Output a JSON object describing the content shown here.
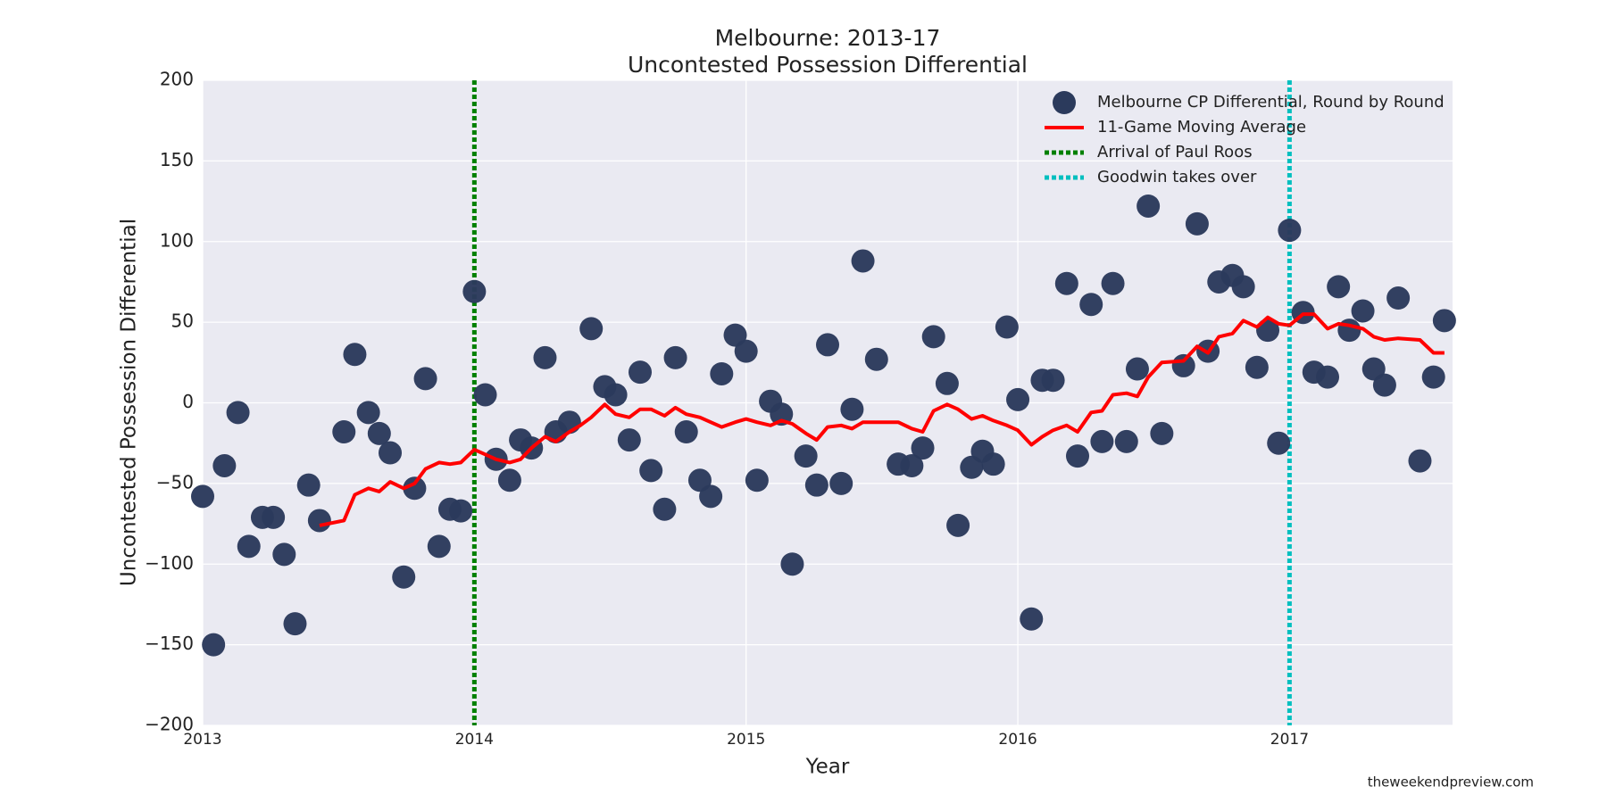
{
  "chart_data": {
    "type": "scatter",
    "title": "Melbourne: 2013-17",
    "subtitle": "Uncontested Possession Differential",
    "xlabel": "Year",
    "ylabel": "Uncontested Possession Differential",
    "annotation": "theweekendpreview.com",
    "xlim": [
      2013,
      2017.6
    ],
    "xticks": [
      2013,
      2014,
      2015,
      2016,
      2017
    ],
    "ylim": [
      -200,
      200
    ],
    "yticks": [
      {
        "value": -200,
        "label": "−200"
      },
      {
        "value": -150,
        "label": "−150"
      },
      {
        "value": -100,
        "label": "−100"
      },
      {
        "value": -50,
        "label": "−50"
      },
      0,
      50,
      100,
      150,
      200
    ],
    "grid": true,
    "legend": "upper right",
    "series": [
      {
        "name": "Melbourne CP Differential, Round by Round",
        "type": "scatter",
        "color": "#2b3a5c",
        "x": [
          2013.0,
          2013.04,
          2013.08,
          2013.13,
          2013.17,
          2013.22,
          2013.26,
          2013.3,
          2013.34,
          2013.39,
          2013.43,
          2013.52,
          2013.56,
          2013.61,
          2013.65,
          2013.69,
          2013.74,
          2013.78,
          2013.82,
          2013.87,
          2013.91,
          2013.95,
          2014.0,
          2014.04,
          2014.08,
          2014.13,
          2014.17,
          2014.21,
          2014.26,
          2014.3,
          2014.35,
          2014.43,
          2014.48,
          2014.52,
          2014.57,
          2014.61,
          2014.65,
          2014.7,
          2014.74,
          2014.78,
          2014.83,
          2014.87,
          2014.91,
          2014.96,
          2015.0,
          2015.04,
          2015.09,
          2015.13,
          2015.17,
          2015.22,
          2015.26,
          2015.3,
          2015.35,
          2015.39,
          2015.43,
          2015.48,
          2015.56,
          2015.61,
          2015.65,
          2015.69,
          2015.74,
          2015.78,
          2015.83,
          2015.87,
          2015.91,
          2015.96,
          2016.0,
          2016.05,
          2016.09,
          2016.13,
          2016.18,
          2016.22,
          2016.27,
          2016.31,
          2016.35,
          2016.4,
          2016.44,
          2016.48,
          2016.53,
          2016.61,
          2016.66,
          2016.7,
          2016.74,
          2016.79,
          2016.83,
          2016.88,
          2016.92,
          2016.96,
          2017.0,
          2017.05,
          2017.09,
          2017.14,
          2017.18,
          2017.22,
          2017.27,
          2017.31,
          2017.35,
          2017.4,
          2017.48,
          2017.53,
          2017.57
        ],
        "values": [
          -58,
          -150,
          -39,
          -6,
          -89,
          -71,
          -71,
          -94,
          -137,
          -51,
          -73,
          -18,
          30,
          -6,
          -19,
          -31,
          -108,
          -53,
          15,
          -89,
          -66,
          -67,
          69,
          5,
          -35,
          -48,
          -23,
          -28,
          28,
          -18,
          -12,
          46,
          10,
          5,
          -23,
          19,
          -42,
          -66,
          28,
          -18,
          -48,
          -58,
          18,
          42,
          32,
          -48,
          1,
          -7,
          -100,
          -33,
          -51,
          36,
          -50,
          -4,
          88,
          27,
          -38,
          -39,
          -28,
          41,
          12,
          -76,
          -40,
          -30,
          -38,
          47,
          2,
          -134,
          14,
          14,
          74,
          -33,
          61,
          -24,
          74,
          -24,
          21,
          122,
          -19,
          23,
          111,
          32,
          75,
          79,
          72,
          22,
          45,
          -25,
          107,
          56,
          19,
          16,
          72,
          45,
          57,
          21,
          11,
          65,
          -36,
          16,
          51
        ]
      },
      {
        "name": "11-Game Moving Average",
        "type": "line",
        "color": "#ff0000",
        "x": [
          2013.43,
          2013.52,
          2013.56,
          2013.61,
          2013.65,
          2013.69,
          2013.74,
          2013.78,
          2013.82,
          2013.87,
          2013.91,
          2013.95,
          2014.0,
          2014.04,
          2014.08,
          2014.13,
          2014.17,
          2014.21,
          2014.26,
          2014.3,
          2014.35,
          2014.39,
          2014.43,
          2014.48,
          2014.52,
          2014.57,
          2014.61,
          2014.65,
          2014.7,
          2014.74,
          2014.78,
          2014.83,
          2014.87,
          2014.91,
          2014.96,
          2015.0,
          2015.04,
          2015.09,
          2015.13,
          2015.17,
          2015.22,
          2015.26,
          2015.3,
          2015.35,
          2015.39,
          2015.43,
          2015.48,
          2015.56,
          2015.61,
          2015.65,
          2015.69,
          2015.74,
          2015.78,
          2015.83,
          2015.87,
          2015.91,
          2015.96,
          2016.0,
          2016.05,
          2016.09,
          2016.13,
          2016.18,
          2016.22,
          2016.27,
          2016.31,
          2016.35,
          2016.4,
          2016.44,
          2016.48,
          2016.53,
          2016.61,
          2016.66,
          2016.7,
          2016.74,
          2016.79,
          2016.83,
          2016.88,
          2016.92,
          2016.96,
          2017.0,
          2017.05,
          2017.09,
          2017.14,
          2017.18,
          2017.22,
          2017.27,
          2017.31,
          2017.35,
          2017.4,
          2017.48,
          2017.53,
          2017.57
        ],
        "values": [
          -76,
          -73,
          -57,
          -53,
          -55,
          -49,
          -53,
          -50,
          -41,
          -37,
          -38,
          -37,
          -29,
          -32,
          -35,
          -37,
          -35,
          -28,
          -21,
          -24,
          -18,
          -14,
          -9,
          -1,
          -7,
          -9,
          -4,
          -4,
          -8,
          -3,
          -7,
          -9,
          -12,
          -15,
          -12,
          -10,
          -12,
          -14,
          -11,
          -13,
          -19,
          -23,
          -15,
          -14,
          -16,
          -12,
          -12,
          -12,
          -16,
          -18,
          -5,
          -1,
          -4,
          -10,
          -8,
          -11,
          -14,
          -17,
          -26,
          -21,
          -17,
          -14,
          -18,
          -6,
          -5,
          5,
          6,
          4,
          16,
          25,
          26,
          35,
          31,
          41,
          43,
          51,
          47,
          53,
          49,
          48,
          55,
          55,
          46,
          49,
          48,
          46,
          41,
          39,
          40,
          39,
          31,
          31
        ]
      }
    ],
    "vlines": [
      {
        "name": "Arrival of Paul Roos",
        "x": 2014,
        "color": "#008000"
      },
      {
        "name": "Goodwin takes over",
        "x": 2017,
        "color": "#00bfbf"
      }
    ]
  }
}
